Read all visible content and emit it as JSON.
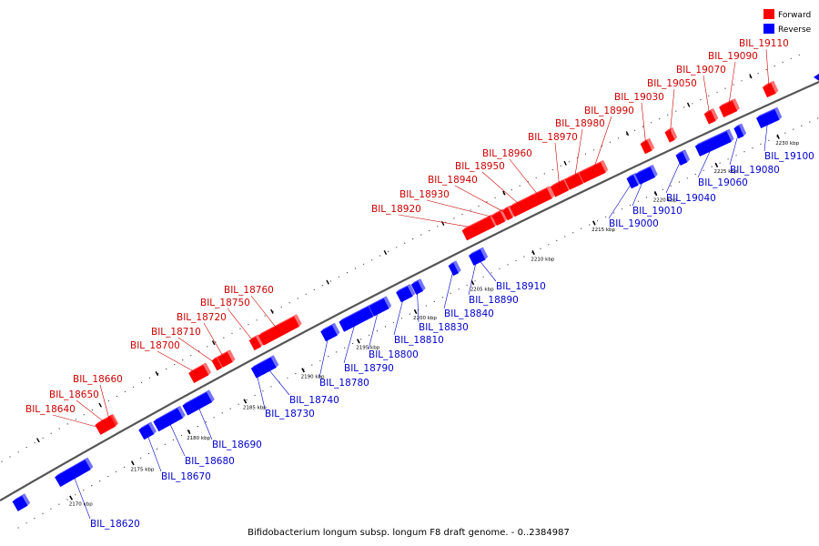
{
  "caption": "Bifidobacterium longum subsp. longum F8 draft genome. - 0..2384987",
  "legend": {
    "forward": {
      "label": "Forward",
      "color": "#ff0000"
    },
    "reverse": {
      "label": "Reverse",
      "color": "#0000ff"
    }
  },
  "colors": {
    "backbone": "#555555",
    "forward_label": "#cc0000",
    "reverse_label": "#0000cc"
  },
  "tick_labels": [
    "2170 kbp",
    "2175 kbp",
    "2180 kbp",
    "2185 kbp",
    "2190 kbp",
    "2195 kbp",
    "2200 kbp",
    "2205 kbp",
    "2210 kbp",
    "2215 kbp",
    "2220 kbp",
    "2225 kbp",
    "2230 kbp"
  ],
  "forward_genes": [
    "BIL_18640",
    "BIL_18650",
    "BIL_18660",
    "BIL_18700",
    "BIL_18710",
    "BIL_18720",
    "BIL_18750",
    "BIL_18760",
    "BIL_18920",
    "BIL_18930",
    "BIL_18940",
    "BIL_18950",
    "BIL_18960",
    "BIL_18970",
    "BIL_18980",
    "BIL_18990",
    "BIL_19030",
    "BIL_19050",
    "BIL_19070",
    "BIL_19090",
    "BIL_19110"
  ],
  "reverse_genes": [
    "BIL_18620",
    "BIL_18670",
    "BIL_18680",
    "BIL_18690",
    "BIL_18730",
    "BIL_18740",
    "BIL_18780",
    "BIL_18790",
    "BIL_18800",
    "BIL_18810",
    "BIL_18830",
    "BIL_18840",
    "BIL_18890",
    "BIL_18910",
    "BIL_19000",
    "BIL_19010",
    "BIL_19040",
    "BIL_19060",
    "BIL_19080",
    "BIL_19100"
  ]
}
